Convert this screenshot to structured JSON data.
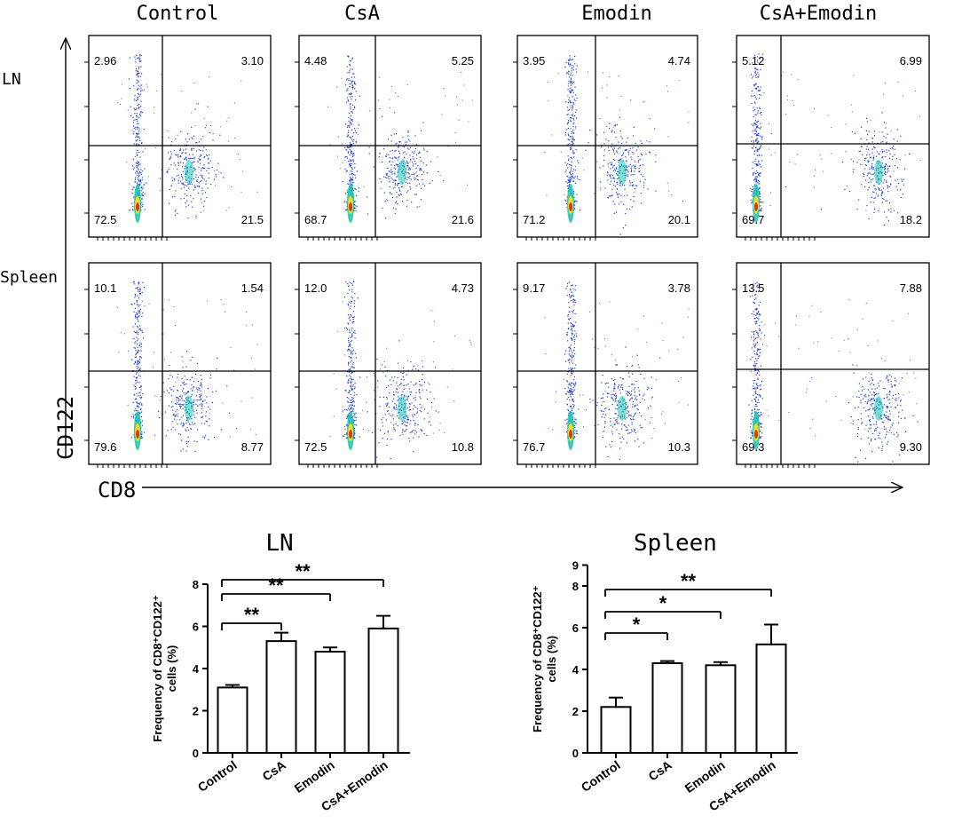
{
  "flow": {
    "columns": [
      "Control",
      "CsA",
      "Emodin",
      "CsA+Emodin"
    ],
    "rows": [
      "LN",
      "Spleen"
    ],
    "x_axis_label": "CD8",
    "y_axis_label": "CD122",
    "quadrants": [
      [
        {
          "tl": "2.96",
          "tr": "3.10",
          "bl": "72.5",
          "br": "21.5"
        },
        {
          "tl": "4.48",
          "tr": "5.25",
          "bl": "68.7",
          "br": "21.6"
        },
        {
          "tl": "3.95",
          "tr": "4.74",
          "bl": "71.2",
          "br": "20.1"
        },
        {
          "tl": "5.12",
          "tr": "6.99",
          "bl": "69.7",
          "br": "18.2"
        }
      ],
      [
        {
          "tl": "10.1",
          "tr": "1.54",
          "bl": "79.6",
          "br": "8.77"
        },
        {
          "tl": "12.0",
          "tr": "4.73",
          "bl": "72.5",
          "br": "10.8"
        },
        {
          "tl": "9.17",
          "tr": "3.78",
          "bl": "76.7",
          "br": "10.3"
        },
        {
          "tl": "13.5",
          "tr": "7.88",
          "bl": "69.3",
          "br": "9.30"
        }
      ]
    ]
  },
  "chart_data": [
    {
      "type": "bar",
      "title": "LN",
      "categories": [
        "Control",
        "CsA",
        "Emodin",
        "CsA+Emodin"
      ],
      "values": [
        3.1,
        5.3,
        4.8,
        5.9
      ],
      "errors": [
        0.12,
        0.4,
        0.2,
        0.6
      ],
      "ylabel_line1": "Frequency of CD8⁺CD122⁺",
      "ylabel_line2": "cells (%)",
      "ylim": [
        0,
        8
      ],
      "yticks": [
        0,
        2,
        4,
        6,
        8
      ],
      "significance": [
        {
          "from": 0,
          "to": 1,
          "label": "**"
        },
        {
          "from": 0,
          "to": 2,
          "label": "**"
        },
        {
          "from": 0,
          "to": 3,
          "label": "**"
        }
      ]
    },
    {
      "type": "bar",
      "title": "Spleen",
      "categories": [
        "Control",
        "CsA",
        "Emodin",
        "CsA+Emodin"
      ],
      "values": [
        2.2,
        4.3,
        4.2,
        5.2
      ],
      "errors": [
        0.45,
        0.1,
        0.15,
        0.95
      ],
      "ylabel_line1": "Frequency of CD8⁺CD122⁺",
      "ylabel_line2": "cells (%)",
      "ylim": [
        0,
        9
      ],
      "yticks": [
        0,
        2,
        4,
        6,
        8,
        9
      ],
      "significance": [
        {
          "from": 0,
          "to": 1,
          "label": "*"
        },
        {
          "from": 0,
          "to": 2,
          "label": "*"
        },
        {
          "from": 0,
          "to": 3,
          "label": "**"
        }
      ]
    }
  ]
}
